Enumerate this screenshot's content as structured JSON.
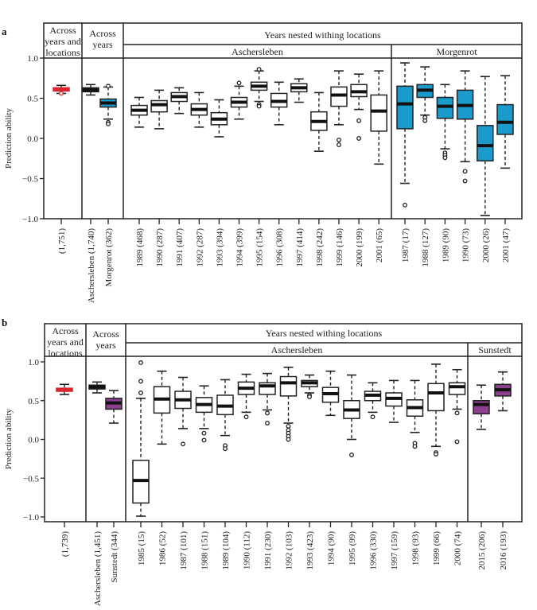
{
  "chart_data": [
    {
      "type": "box",
      "panel_label": "a",
      "ylabel": "Prediction ability",
      "ylim": [
        -1.0,
        1.0
      ],
      "yticks": [
        1.0,
        0.5,
        0.0,
        -0.5,
        -1.0
      ],
      "ytick_labels": [
        "1.0",
        "0.5",
        "0.0",
        "−0.5",
        "−1.0"
      ],
      "headers": {
        "across_years_locations": [
          "Across",
          "years and",
          "locations"
        ],
        "across_years": [
          "Across",
          "years"
        ],
        "nested": "Years nested withing locations",
        "location_1": "Aschersleben",
        "location_2": "Morgenrot"
      },
      "colors": {
        "red": "#d9252e",
        "black": "#1a1a1a",
        "blue": "#1b9bcb",
        "white": "#ffffff"
      },
      "boxes": [
        {
          "label": "(1,751)",
          "group": "all",
          "color": "red",
          "stats": [
            0.56,
            0.59,
            0.61,
            0.63,
            0.66
          ],
          "outliers": [
            0.56
          ]
        },
        {
          "label": "Aschersleben (1,740)",
          "group": "years",
          "color": "black",
          "stats": [
            0.54,
            0.58,
            0.6,
            0.63,
            0.67
          ],
          "outliers": []
        },
        {
          "label": "Morgenrot (362)",
          "group": "years",
          "color": "blue",
          "stats": [
            0.24,
            0.39,
            0.44,
            0.49,
            0.64
          ],
          "outliers": [
            0.65,
            0.2,
            0.18
          ]
        },
        {
          "label": "1989 (468)",
          "group": "loc1",
          "color": "white",
          "stats": [
            0.14,
            0.29,
            0.35,
            0.41,
            0.51
          ],
          "outliers": []
        },
        {
          "label": "1990 (287)",
          "group": "loc1",
          "color": "white",
          "stats": [
            0.12,
            0.33,
            0.42,
            0.47,
            0.6
          ],
          "outliers": []
        },
        {
          "label": "1991 (407)",
          "group": "loc1",
          "color": "white",
          "stats": [
            0.31,
            0.46,
            0.52,
            0.57,
            0.63
          ],
          "outliers": []
        },
        {
          "label": "1992 (287)",
          "group": "loc1",
          "color": "white",
          "stats": [
            0.14,
            0.29,
            0.36,
            0.43,
            0.57
          ],
          "outliers": []
        },
        {
          "label": "1993 (394)",
          "group": "loc1",
          "color": "white",
          "stats": [
            0.02,
            0.17,
            0.24,
            0.32,
            0.48
          ],
          "outliers": []
        },
        {
          "label": "1994 (399)",
          "group": "loc1",
          "color": "white",
          "stats": [
            0.24,
            0.39,
            0.45,
            0.51,
            0.65
          ],
          "outliers": [
            0.69
          ]
        },
        {
          "label": "1995 (154)",
          "group": "loc1",
          "color": "white",
          "stats": [
            0.46,
            0.6,
            0.65,
            0.7,
            0.84
          ],
          "outliers": [
            0.86,
            0.42,
            0.4
          ]
        },
        {
          "label": "1996 (308)",
          "group": "loc1",
          "color": "white",
          "stats": [
            0.17,
            0.39,
            0.46,
            0.56,
            0.7
          ],
          "outliers": []
        },
        {
          "label": "1997 (414)",
          "group": "loc1",
          "color": "white",
          "stats": [
            0.45,
            0.58,
            0.63,
            0.68,
            0.74
          ],
          "outliers": []
        },
        {
          "label": "1998 (242)",
          "group": "loc1",
          "color": "white",
          "stats": [
            -0.16,
            0.1,
            0.21,
            0.33,
            0.57
          ],
          "outliers": []
        },
        {
          "label": "1999 (146)",
          "group": "loc1",
          "color": "white",
          "stats": [
            0.17,
            0.4,
            0.54,
            0.64,
            0.84
          ],
          "outliers": [
            -0.02,
            -0.08
          ]
        },
        {
          "label": "2000 (199)",
          "group": "loc1",
          "color": "white",
          "stats": [
            0.36,
            0.52,
            0.58,
            0.67,
            0.8
          ],
          "outliers": [
            0.22,
            0.0
          ]
        },
        {
          "label": "2001 (65)",
          "group": "loc1",
          "color": "white",
          "stats": [
            -0.32,
            0.09,
            0.34,
            0.54,
            0.84
          ],
          "outliers": []
        },
        {
          "label": "1987 (17)",
          "group": "loc2",
          "color": "blue",
          "stats": [
            -0.56,
            0.12,
            0.43,
            0.65,
            0.94
          ],
          "outliers": [
            -0.83
          ]
        },
        {
          "label": "1988 (127)",
          "group": "loc2",
          "color": "blue",
          "stats": [
            0.29,
            0.51,
            0.6,
            0.67,
            0.89
          ],
          "outliers": [
            0.26,
            0.22
          ]
        },
        {
          "label": "1989 (90)",
          "group": "loc2",
          "color": "blue",
          "stats": [
            -0.13,
            0.25,
            0.4,
            0.51,
            0.67
          ],
          "outliers": [
            -0.18,
            -0.21,
            -0.24
          ]
        },
        {
          "label": "1990 (73)",
          "group": "loc2",
          "color": "blue",
          "stats": [
            -0.29,
            0.24,
            0.41,
            0.6,
            0.84
          ],
          "outliers": [
            -0.41,
            -0.53
          ]
        },
        {
          "label": "2000 (26)",
          "group": "loc2",
          "color": "blue",
          "stats": [
            -0.96,
            -0.28,
            -0.09,
            0.16,
            0.77
          ],
          "outliers": []
        },
        {
          "label": "2001 (47)",
          "group": "loc2",
          "color": "blue",
          "stats": [
            -0.37,
            0.05,
            0.2,
            0.42,
            0.78
          ],
          "outliers": []
        }
      ]
    },
    {
      "type": "box",
      "panel_label": "b",
      "ylabel": "Prediction ability",
      "ylim": [
        -1.0,
        1.0
      ],
      "yticks": [
        1.0,
        0.5,
        0.0,
        -0.5,
        -1.0
      ],
      "ytick_labels": [
        "1.0",
        "0.5",
        "0.0",
        "−0.5",
        "−1.0"
      ],
      "headers": {
        "across_years_locations": [
          "Across",
          "years and",
          "locations"
        ],
        "across_years": [
          "Across",
          "years"
        ],
        "nested": "Years nested withing locations",
        "location_1": "Aschersleben",
        "location_2": "Sunstedt"
      },
      "colors": {
        "red": "#d9252e",
        "black": "#1a1a1a",
        "purple": "#8c3f8f",
        "white": "#ffffff"
      },
      "boxes": [
        {
          "label": "(1,739)",
          "group": "all",
          "color": "red",
          "stats": [
            0.58,
            0.62,
            0.64,
            0.66,
            0.71
          ],
          "outliers": []
        },
        {
          "label": "Aschersleben (1,451)",
          "group": "years",
          "color": "black",
          "stats": [
            0.6,
            0.65,
            0.68,
            0.7,
            0.74
          ],
          "outliers": []
        },
        {
          "label": "Sunstedt (344)",
          "group": "years",
          "color": "purple",
          "stats": [
            0.21,
            0.39,
            0.47,
            0.53,
            0.63
          ],
          "outliers": []
        },
        {
          "label": "1985 (15)",
          "group": "loc1",
          "color": "white",
          "stats": [
            -0.99,
            -0.82,
            -0.53,
            -0.27,
            0.53
          ],
          "outliers": [
            0.99,
            0.75,
            0.6
          ]
        },
        {
          "label": "1986 (52)",
          "group": "loc1",
          "color": "white",
          "stats": [
            -0.06,
            0.34,
            0.52,
            0.68,
            0.88
          ],
          "outliers": []
        },
        {
          "label": "1987 (101)",
          "group": "loc1",
          "color": "white",
          "stats": [
            0.14,
            0.4,
            0.51,
            0.62,
            0.8
          ],
          "outliers": [
            -0.06
          ]
        },
        {
          "label": "1988 (151)",
          "group": "loc1",
          "color": "white",
          "stats": [
            0.14,
            0.35,
            0.45,
            0.54,
            0.69
          ],
          "outliers": [
            0.08,
            -0.01
          ]
        },
        {
          "label": "1989 (104)",
          "group": "loc1",
          "color": "white",
          "stats": [
            0.05,
            0.32,
            0.43,
            0.57,
            0.77
          ],
          "outliers": [
            -0.08,
            -0.12
          ]
        },
        {
          "label": "1990 (112)",
          "group": "loc1",
          "color": "white",
          "stats": [
            0.35,
            0.58,
            0.66,
            0.74,
            0.84
          ],
          "outliers": [
            0.29
          ]
        },
        {
          "label": "1991 (230)",
          "group": "loc1",
          "color": "white",
          "stats": [
            0.38,
            0.58,
            0.69,
            0.73,
            0.85
          ],
          "outliers": [
            0.34,
            0.21
          ]
        },
        {
          "label": "1992 (103)",
          "group": "loc1",
          "color": "white",
          "stats": [
            0.21,
            0.56,
            0.73,
            0.81,
            0.93
          ],
          "outliers": [
            0.17,
            0.12,
            0.08,
            0.04,
            0.0
          ]
        },
        {
          "label": "1993 (423)",
          "group": "loc1",
          "color": "white",
          "stats": [
            0.6,
            0.68,
            0.73,
            0.76,
            0.83
          ],
          "outliers": [
            0.57,
            0.55
          ]
        },
        {
          "label": "1994 (90)",
          "group": "loc1",
          "color": "white",
          "stats": [
            0.31,
            0.48,
            0.59,
            0.67,
            0.88
          ],
          "outliers": []
        },
        {
          "label": "1995 (99)",
          "group": "loc1",
          "color": "white",
          "stats": [
            0.0,
            0.27,
            0.38,
            0.5,
            0.83
          ],
          "outliers": [
            -0.2
          ]
        },
        {
          "label": "1996 (330)",
          "group": "loc1",
          "color": "white",
          "stats": [
            0.35,
            0.5,
            0.57,
            0.62,
            0.73
          ],
          "outliers": [
            0.29
          ]
        },
        {
          "label": "1997 (159)",
          "group": "loc1",
          "color": "white",
          "stats": [
            0.22,
            0.43,
            0.53,
            0.6,
            0.76
          ],
          "outliers": []
        },
        {
          "label": "1998 (93)",
          "group": "loc1",
          "color": "white",
          "stats": [
            0.09,
            0.3,
            0.41,
            0.51,
            0.76
          ],
          "outliers": [
            -0.05,
            -0.09
          ]
        },
        {
          "label": "1999 (66)",
          "group": "loc1",
          "color": "white",
          "stats": [
            -0.09,
            0.37,
            0.6,
            0.72,
            0.97
          ],
          "outliers": [
            -0.17,
            -0.19
          ]
        },
        {
          "label": "2000 (74)",
          "group": "loc1",
          "color": "white",
          "stats": [
            0.39,
            0.58,
            0.68,
            0.73,
            0.9
          ],
          "outliers": [
            0.34,
            -0.03
          ]
        },
        {
          "label": "2015 (206)",
          "group": "loc2",
          "color": "purple",
          "stats": [
            0.13,
            0.33,
            0.45,
            0.5,
            0.7
          ],
          "outliers": []
        },
        {
          "label": "2016 (193)",
          "group": "loc2",
          "color": "purple",
          "stats": [
            0.37,
            0.56,
            0.64,
            0.71,
            0.87
          ],
          "outliers": []
        }
      ]
    }
  ]
}
